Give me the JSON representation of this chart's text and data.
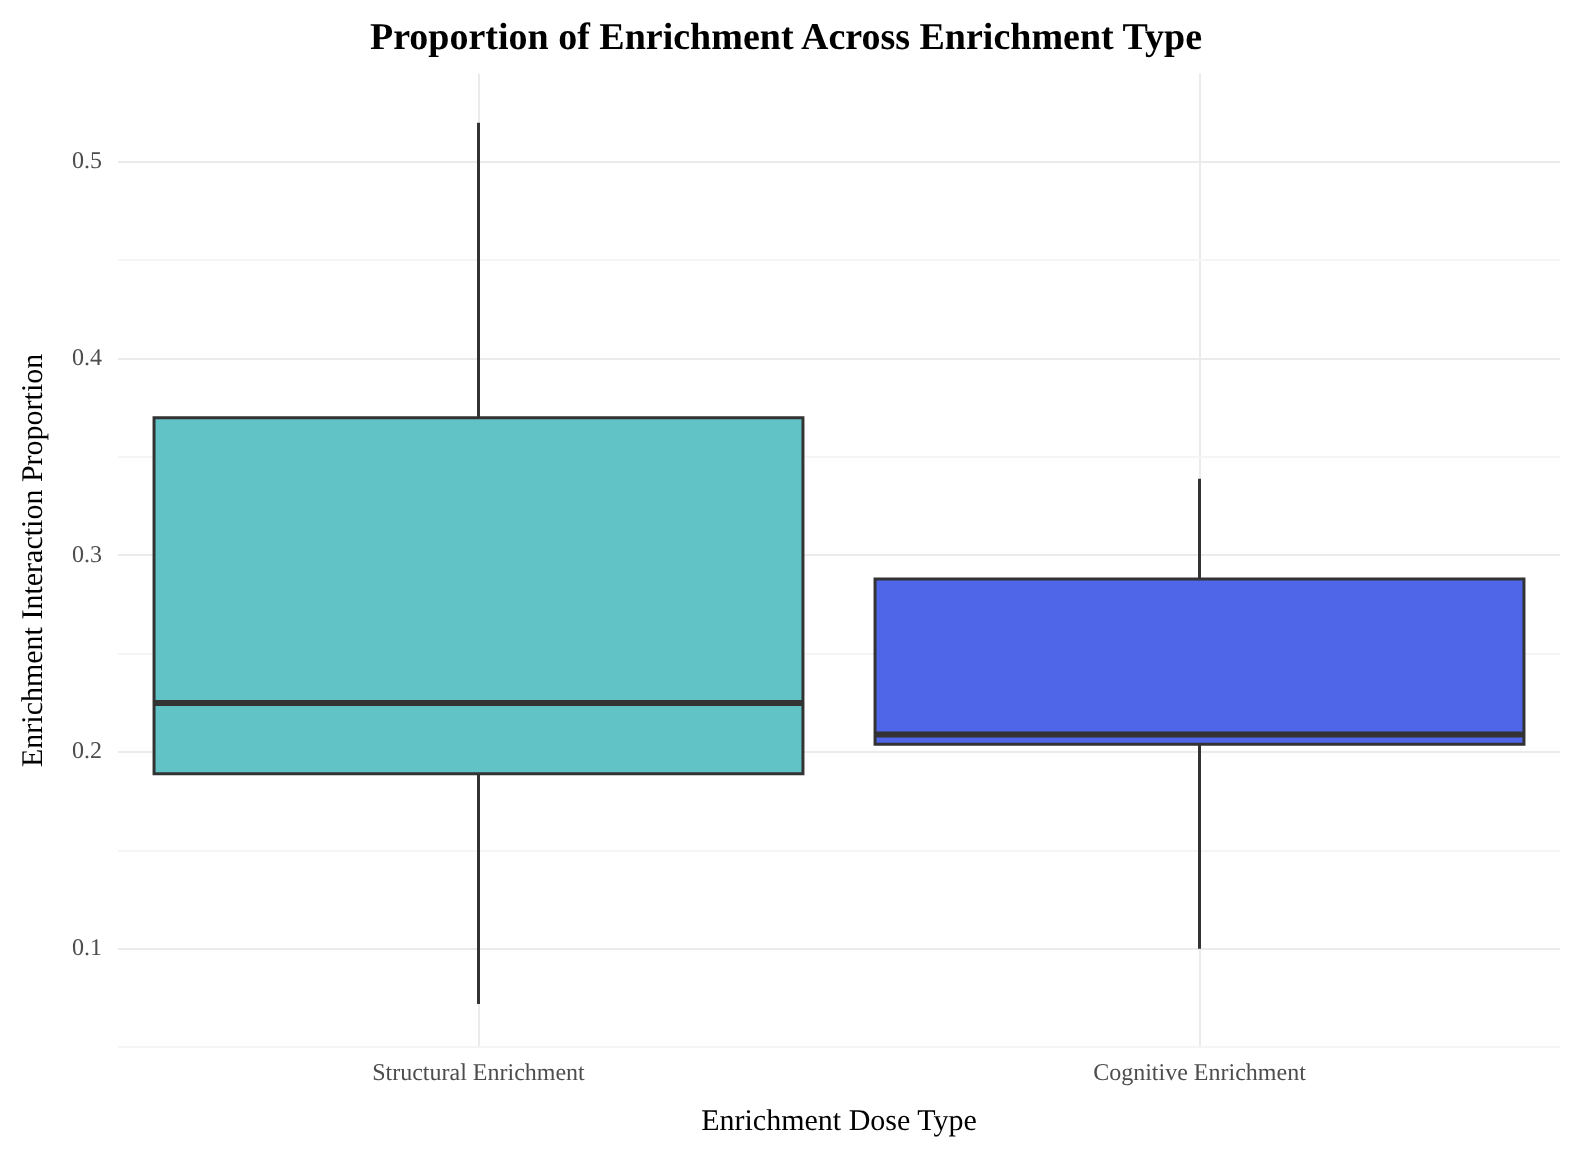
{
  "chart_data": {
    "type": "box",
    "title": "Proportion of Enrichment Across Enrichment Type",
    "xlabel": "Enrichment Dose Type",
    "ylabel": "Enrichment Interaction Proportion",
    "categories": [
      "Structural Enrichment",
      "Cognitive Enrichment"
    ],
    "colors": [
      "#62c3c7",
      "#4f66e8"
    ],
    "boxes": [
      {
        "low": 0.072,
        "q1": 0.189,
        "median": 0.225,
        "q3": 0.37,
        "high": 0.52
      },
      {
        "low": 0.1,
        "q1": 0.204,
        "median": 0.209,
        "q3": 0.288,
        "high": 0.339
      }
    ],
    "ylim": [
      0.05,
      0.545
    ],
    "yticks": [
      {
        "value": 0.05,
        "label": null
      },
      0.1,
      {
        "value": 0.15,
        "label": null
      },
      0.2,
      {
        "value": 0.25,
        "label": null
      },
      0.3,
      {
        "value": 0.35,
        "label": null
      },
      0.4,
      {
        "value": 0.45,
        "label": null
      },
      0.5
    ],
    "grid": true,
    "legend": false
  }
}
